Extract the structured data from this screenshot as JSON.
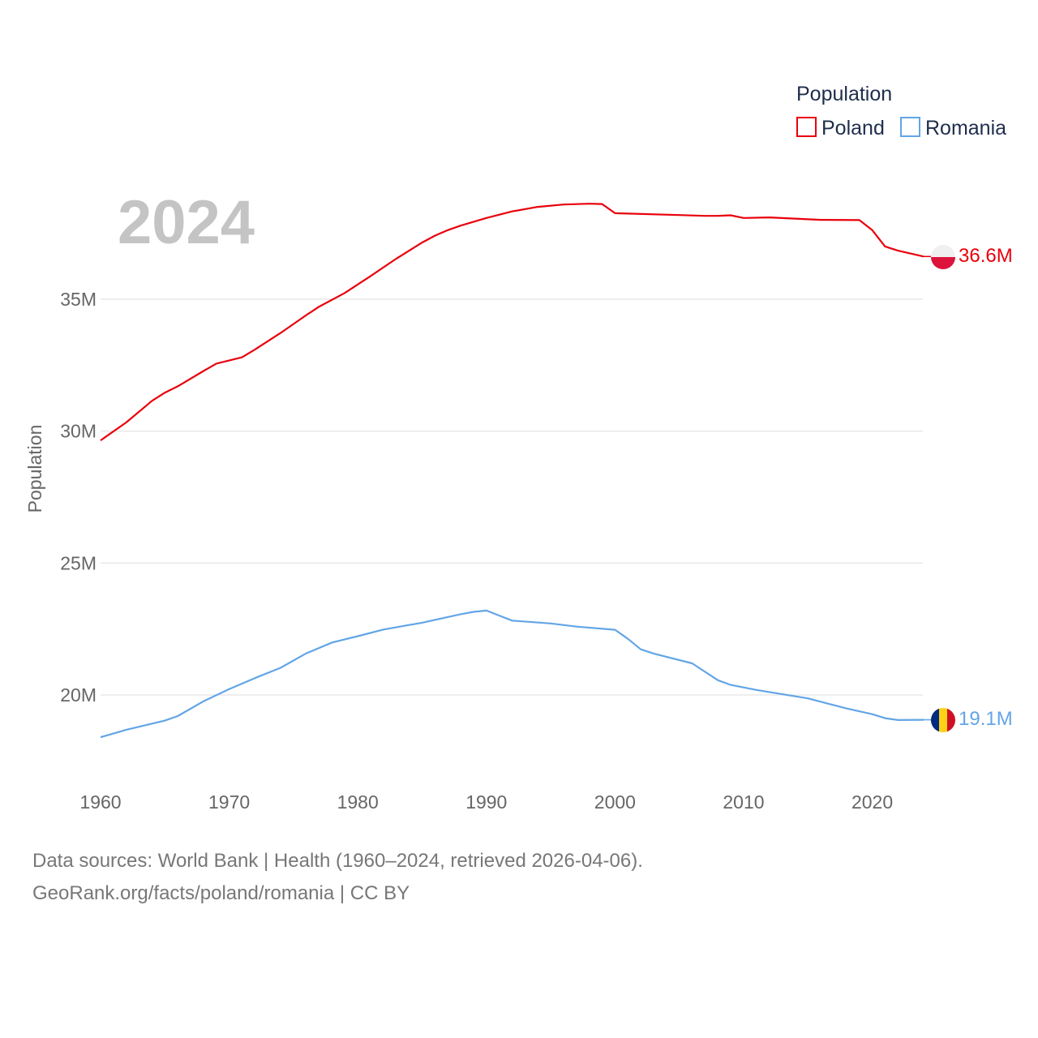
{
  "chart_data": {
    "type": "line",
    "title": "Population",
    "year_label": "2024",
    "ylabel": "Population",
    "xlabel": "",
    "xlim": [
      1960,
      2024
    ],
    "ylim": [
      18000000,
      38800000
    ],
    "y_ticks": [
      {
        "value": 20000000,
        "label": "20M"
      },
      {
        "value": 25000000,
        "label": "25M"
      },
      {
        "value": 30000000,
        "label": "30M"
      },
      {
        "value": 35000000,
        "label": "35M"
      }
    ],
    "x_ticks": [
      {
        "value": 1960,
        "label": "1960"
      },
      {
        "value": 1970,
        "label": "1970"
      },
      {
        "value": 1980,
        "label": "1980"
      },
      {
        "value": 1990,
        "label": "1990"
      },
      {
        "value": 2000,
        "label": "2000"
      },
      {
        "value": 2010,
        "label": "2010"
      },
      {
        "value": 2020,
        "label": "2020"
      }
    ],
    "legend": {
      "title": "Population",
      "position": "top-right"
    },
    "series": [
      {
        "name": "Poland",
        "color": "#e8000b",
        "end_label": "36.6M",
        "flag": "poland-flag",
        "x": [
          1960,
          1962,
          1964,
          1965,
          1966,
          1968,
          1969,
          1971,
          1972,
          1974,
          1976,
          1977,
          1979,
          1981,
          1983,
          1985,
          1986,
          1987,
          1988,
          1990,
          1992,
          1994,
          1996,
          1998,
          1999,
          2000,
          2005,
          2007,
          2008,
          2009,
          2010,
          2012,
          2016,
          2019,
          2020,
          2021,
          2022,
          2024
        ],
        "values": [
          29650000,
          30330000,
          31150000,
          31460000,
          31700000,
          32280000,
          32560000,
          32800000,
          33090000,
          33720000,
          34400000,
          34720000,
          35240000,
          35880000,
          36540000,
          37150000,
          37410000,
          37620000,
          37790000,
          38080000,
          38330000,
          38500000,
          38590000,
          38620000,
          38610000,
          38260000,
          38190000,
          38160000,
          38160000,
          38180000,
          38080000,
          38100000,
          38010000,
          38000000,
          37620000,
          37000000,
          36840000,
          36620000
        ]
      },
      {
        "name": "Romania",
        "color": "#63a5e6",
        "end_label": "19.1M",
        "flag": "romania-flag",
        "x": [
          1960,
          1962,
          1965,
          1966,
          1968,
          1970,
          1972,
          1974,
          1976,
          1978,
          1980,
          1982,
          1985,
          1988,
          1989,
          1990,
          1992,
          1995,
          1997,
          2000,
          2001,
          2002,
          2003,
          2006,
          2008,
          2009,
          2011,
          2015,
          2018,
          2020,
          2021,
          2022,
          2024
        ],
        "values": [
          18400000,
          18680000,
          19030000,
          19200000,
          19760000,
          20220000,
          20640000,
          21030000,
          21580000,
          21990000,
          22230000,
          22480000,
          22740000,
          23060000,
          23150000,
          23200000,
          22820000,
          22710000,
          22590000,
          22470000,
          22130000,
          21730000,
          21570000,
          21200000,
          20560000,
          20380000,
          20190000,
          19870000,
          19490000,
          19270000,
          19120000,
          19050000,
          19060000
        ]
      }
    ]
  },
  "source_lines": [
    "Data sources: World Bank | Health (1960–2024, retrieved 2026-04-06).",
    "GeoRank.org/facts/poland/romania | CC BY"
  ]
}
